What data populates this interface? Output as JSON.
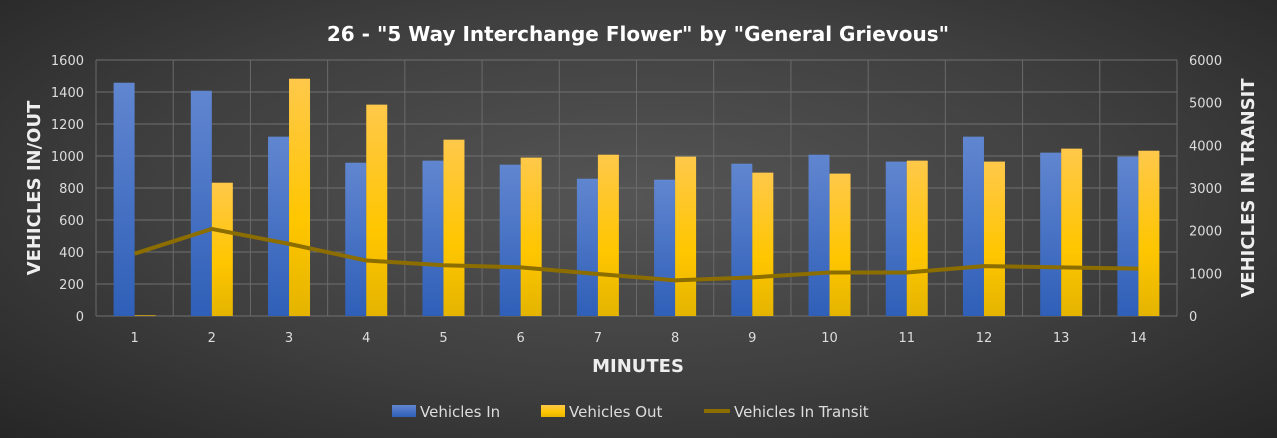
{
  "chart_data": {
    "type": "bar+line",
    "title": "26 - \"5 Way Interchange Flower\" by \"General Grievous\"",
    "xlabel": "MINUTES",
    "ylabel": "VEHICLES IN/OUT",
    "y2label": "VEHICLES IN TRANSIT",
    "categories": [
      "1",
      "2",
      "3",
      "4",
      "5",
      "6",
      "7",
      "8",
      "9",
      "10",
      "11",
      "12",
      "13",
      "14"
    ],
    "ylim": [
      0,
      1600
    ],
    "yticks": [
      0,
      200,
      400,
      600,
      800,
      1000,
      1200,
      1400,
      1600
    ],
    "y2lim": [
      0,
      6000
    ],
    "y2ticks": [
      0,
      1000,
      2000,
      3000,
      4000,
      5000,
      6000
    ],
    "grid": true,
    "legend_position": "bottom",
    "series": [
      {
        "name": "Vehicles In",
        "type": "bar",
        "axis": "left",
        "color": "#4472c4",
        "values": [
          1458,
          1408,
          1121,
          958,
          971,
          946,
          858,
          852,
          952,
          1008,
          965,
          1121,
          1021,
          996
        ]
      },
      {
        "name": "Vehicles Out",
        "type": "bar",
        "axis": "left",
        "color": "#ffc000",
        "values": [
          4,
          833,
          1483,
          1321,
          1102,
          990,
          1008,
          996,
          896,
          890,
          971,
          965,
          1046,
          1033
        ]
      },
      {
        "name": "Vehicles In Transit",
        "type": "line",
        "axis": "right",
        "color": "#8c6d00",
        "values": [
          1460,
          2040,
          1690,
          1300,
          1190,
          1140,
          985,
          835,
          905,
          1020,
          1020,
          1170,
          1140,
          1110
        ]
      }
    ]
  }
}
